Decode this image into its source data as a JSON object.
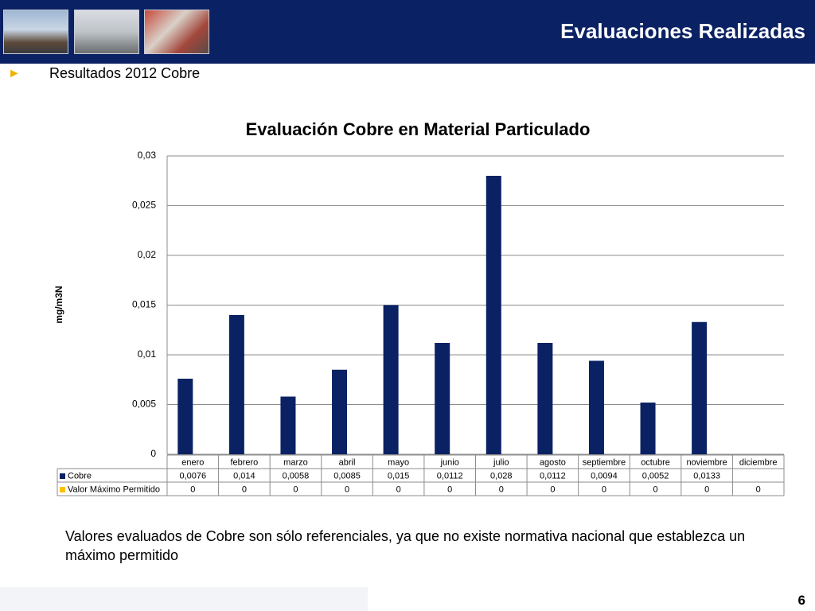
{
  "header": {
    "title": "Evaluaciones Realizadas",
    "bullet": "Resultados 2012 Cobre"
  },
  "chart_data": {
    "type": "bar",
    "title": "Evaluación Cobre en Material Particulado",
    "y_label": "mg/m3N",
    "categories": [
      "enero",
      "febrero",
      "marzo",
      "abril",
      "mayo",
      "junio",
      "julio",
      "agosto",
      "septiembre",
      "octubre",
      "noviembre",
      "diciembre"
    ],
    "series": [
      {
        "name": "Cobre",
        "color": "#0a2163",
        "values": [
          0.0076,
          0.014,
          0.0058,
          0.0085,
          0.015,
          0.0112,
          0.028,
          0.0112,
          0.0094,
          0.0052,
          0.0133,
          null
        ],
        "value_labels": [
          "0,0076",
          "0,014",
          "0,0058",
          "0,0085",
          "0,015",
          "0,0112",
          "0,028",
          "0,0112",
          "0,0094",
          "0,0052",
          "0,0133",
          null
        ]
      },
      {
        "name": "Valor Máximo Permitido",
        "color": "#ffc000",
        "values": [
          0,
          0,
          0,
          0,
          0,
          0,
          0,
          0,
          0,
          0,
          0,
          0
        ]
      }
    ],
    "ylim": [
      0,
      0.03
    ],
    "yticks": [
      0,
      {
        "value": 0.005,
        "label": "0,005"
      },
      {
        "value": 0.01,
        "label": "0,01"
      },
      {
        "value": 0.015,
        "label": "0,015"
      },
      {
        "value": 0.02,
        "label": "0,02"
      },
      {
        "value": 0.025,
        "label": "0,025"
      },
      {
        "value": 0.03,
        "label": "0,03"
      }
    ],
    "grid": true
  },
  "note": "Valores evaluados de Cobre son sólo referenciales, ya que no existe normativa nacional que establezca un máximo permitido",
  "page_number": "6"
}
